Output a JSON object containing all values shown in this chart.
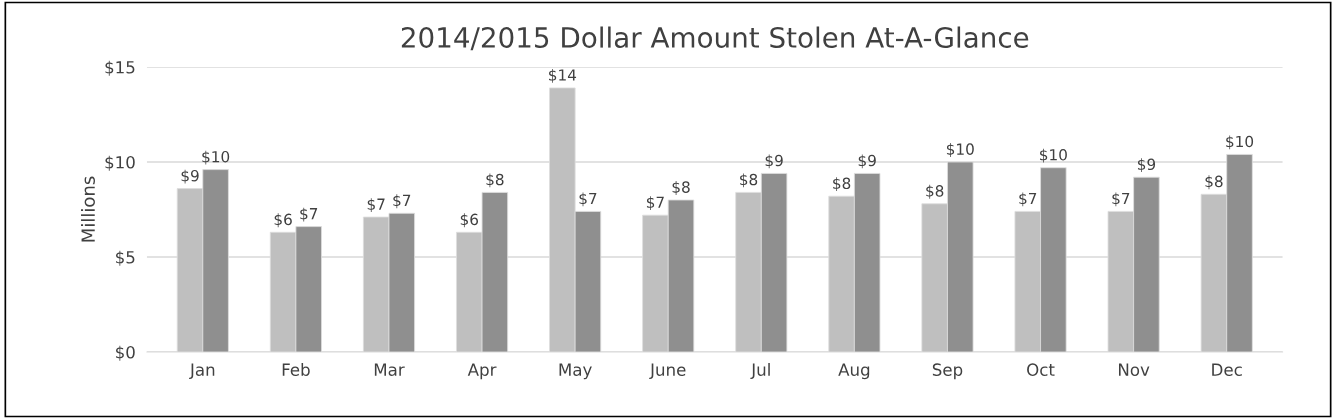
{
  "chart_data": {
    "type": "bar",
    "title": "2014/2015 Dollar Amount Stolen At-A-Glance",
    "ylabel": "Millions",
    "categories": [
      "Jan",
      "Feb",
      "Mar",
      "Apr",
      "May",
      "June",
      "Jul",
      "Aug",
      "Sep",
      "Oct",
      "Nov",
      "Dec"
    ],
    "series": [
      {
        "color": "#bfbfbf",
        "values": [
          8.6,
          6.3,
          7.1,
          6.3,
          13.9,
          7.2,
          8.4,
          8.2,
          7.8,
          7.4,
          7.4,
          8.3
        ],
        "value_labels": [
          "$9",
          "$6",
          "$7",
          "$6",
          "$14",
          "$7",
          "$8",
          "$8",
          "$8",
          "$7",
          "$7",
          "$8"
        ]
      },
      {
        "color": "#8f8f8f",
        "values": [
          9.6,
          6.6,
          7.3,
          8.4,
          7.4,
          8.0,
          9.4,
          9.4,
          10.0,
          9.7,
          9.2,
          10.4
        ],
        "value_labels": [
          "$10",
          "$7",
          "$7",
          "$8",
          "$7",
          "$8",
          "$9",
          "$9",
          "$10",
          "$10",
          "$9",
          "$10"
        ]
      }
    ],
    "ylim": [
      0,
      15
    ],
    "yticks": [
      {
        "value": 0,
        "label": "$0"
      },
      {
        "value": 5,
        "label": "$5"
      },
      {
        "value": 10,
        "label": "$10"
      },
      {
        "value": 15,
        "label": "$15"
      }
    ],
    "grid": "y"
  }
}
